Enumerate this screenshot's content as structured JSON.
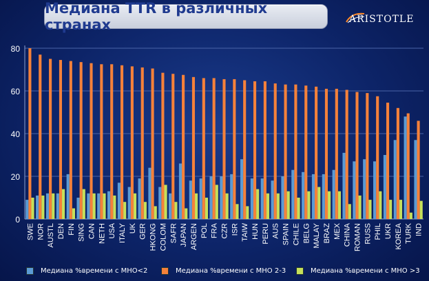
{
  "title": "Медиана TTR в различных странах",
  "logo": "ARISTOTLE",
  "colors": {
    "series1": "#5b9bd5",
    "series2": "#f5813a",
    "series3": "#c6e05a",
    "axis_text": "#ffffff",
    "grid": "#4a64a8"
  },
  "chart_data": {
    "type": "bar",
    "ylim": [
      0,
      80
    ],
    "yticks": [
      0,
      20,
      40,
      60,
      80
    ],
    "grid": true,
    "legend_placement": "bottom",
    "categories": [
      "SWE",
      "NOR",
      "AUSTL",
      "DEN",
      "FIN",
      "SING",
      "CAN",
      "NETH",
      "USA",
      "ITALY",
      "UK",
      "GER",
      "HKONG",
      "COLOM",
      "SAFR",
      "JAPAN",
      "ARGEN",
      "POL",
      "FRA",
      "CZR",
      "ISR",
      "TAIW",
      "HUN",
      "PERU",
      "AUS",
      "SPAIN",
      "CHILE",
      "BELG",
      "MALAY",
      "BRAZ",
      "MEX",
      "CHINA",
      "ROMAN",
      "RUSS",
      "PHIL",
      "UKR",
      "KOREA",
      "TURK",
      "IND"
    ],
    "series": [
      {
        "name": "Медиана %времени с МНО<2",
        "values": [
          9,
          11,
          12,
          12,
          21,
          10,
          12,
          12,
          13,
          17,
          15,
          19,
          24,
          15,
          12,
          26,
          18,
          19,
          20,
          20,
          21,
          28,
          19,
          19,
          18,
          20,
          23,
          22,
          21,
          21,
          23,
          31,
          27,
          28,
          27,
          30,
          37,
          48,
          37
        ]
      },
      {
        "name": "Медиана %времени с МНО 2-3",
        "values": [
          80,
          77,
          75,
          74.5,
          74,
          73.5,
          73,
          72.5,
          72.5,
          72,
          71.5,
          71,
          70.5,
          68.5,
          68,
          67.5,
          66.5,
          66,
          66,
          65.5,
          65.5,
          65,
          64.5,
          64.5,
          63.5,
          63,
          63,
          62.5,
          62,
          61,
          61,
          60.5,
          59.5,
          59,
          57.5,
          54.5,
          52,
          49.5,
          46
        ]
      },
      {
        "name": "Медиана %времени с МНО >3",
        "values": [
          10,
          11,
          12,
          14,
          5,
          14,
          12,
          12,
          11,
          8,
          12,
          8,
          6,
          16,
          8,
          5,
          12,
          10,
          16,
          12,
          7,
          6,
          14,
          12,
          12,
          13,
          10,
          13,
          15,
          13,
          13,
          7,
          11,
          9,
          13,
          9,
          9,
          3,
          8.5
        ]
      }
    ]
  }
}
